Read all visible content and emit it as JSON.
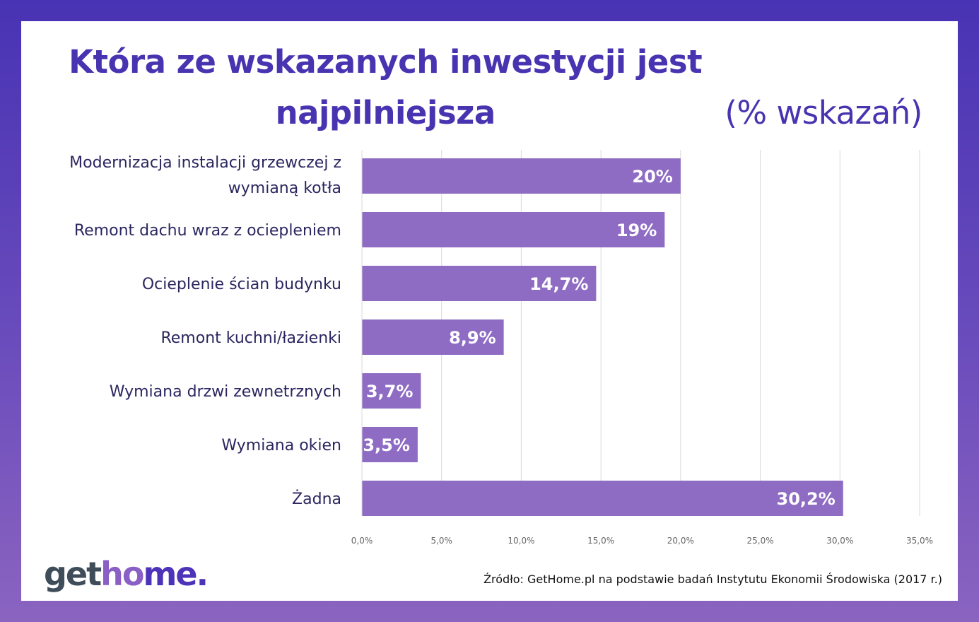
{
  "chart_data": {
    "type": "bar",
    "orientation": "horizontal",
    "title_bold": "Która ze wskazanych inwestycji jest najpilniejsza",
    "title_light": "(% wskazań)",
    "categories": [
      "Modernizacja instalacji grzewczej z wymianą kotła",
      "Remont dachu wraz z ociepleniem",
      "Ocieplenie ścian budynku",
      "Remont kuchni/łazienki",
      "Wymiana drzwi zewnetrznych",
      "Wymiana okien",
      "Żadna"
    ],
    "category_lines": [
      [
        "Modernizacja instalacji grzewczej z",
        "wymianą kotła"
      ],
      [
        "Remont dachu wraz z ociepleniem"
      ],
      [
        "Ocieplenie ścian budynku"
      ],
      [
        "Remont kuchni/łazienki"
      ],
      [
        "Wymiana drzwi zewnetrznych"
      ],
      [
        "Wymiana okien"
      ],
      [
        "Żadna"
      ]
    ],
    "values": [
      20,
      19,
      14.7,
      8.9,
      3.7,
      3.5,
      30.2
    ],
    "data_labels": [
      "20%",
      "19%",
      "14,7%",
      "8,9%",
      "3,7%",
      "3,5%",
      "30,2%"
    ],
    "xlim": [
      0,
      35
    ],
    "xticks": [
      "0,0%",
      "5,0%",
      "10,0%",
      "15,0%",
      "20,0%",
      "25,0%",
      "30,0%",
      "35,0%"
    ],
    "grid": true,
    "bar_color": "#8f6cc4"
  },
  "logo": {
    "part1": "get",
    "part2": "ho",
    "part3": "me."
  },
  "source": "Źródło: GetHome.pl na podstawie badań Instytutu Ekonomii Środowiska (2017 r.)"
}
